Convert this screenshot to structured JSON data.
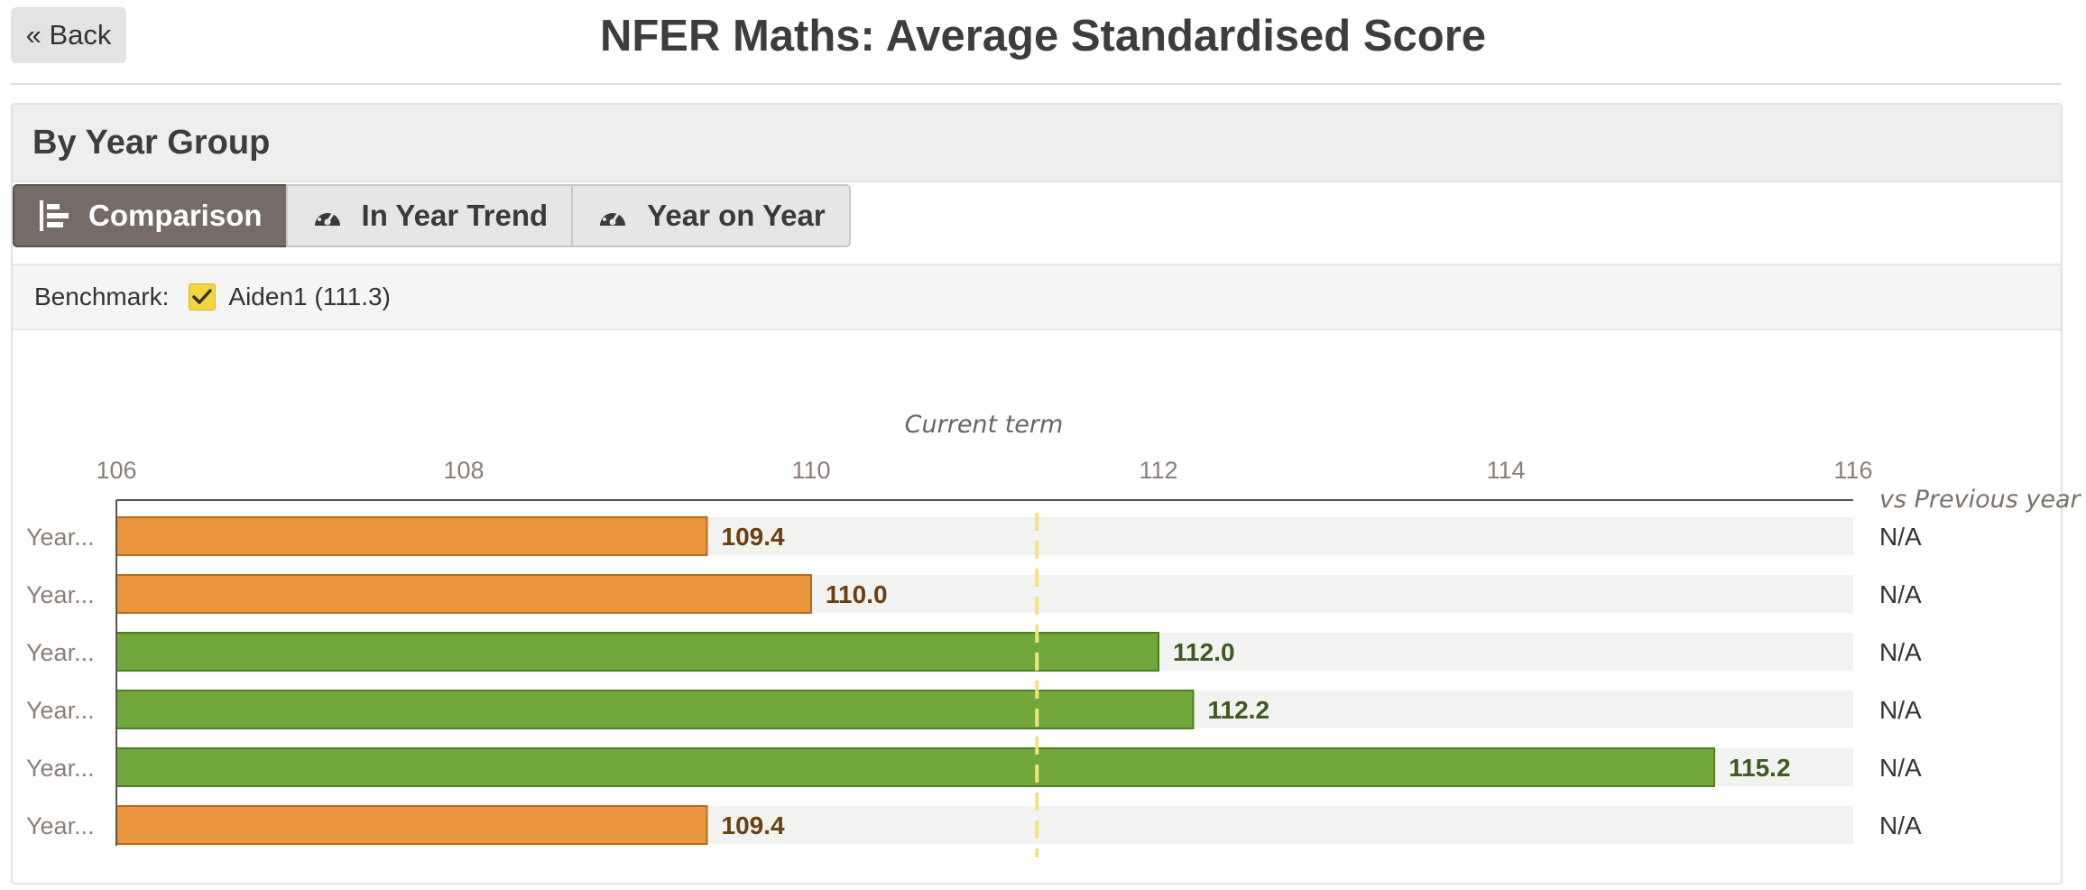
{
  "header": {
    "back_label": "« Back",
    "title": "NFER Maths: Average Standardised Score"
  },
  "panel": {
    "heading": "By Year Group",
    "tabs": [
      {
        "label": "Comparison",
        "icon": "bar-chart-icon",
        "active": true
      },
      {
        "label": "In Year Trend",
        "icon": "gauge-icon",
        "active": false
      },
      {
        "label": "Year on Year",
        "icon": "gauge-icon",
        "active": false
      }
    ],
    "benchmark": {
      "label": "Benchmark:",
      "checked": true,
      "item": "Aiden1 (111.3)"
    }
  },
  "colors": {
    "below_benchmark": "#e9963e",
    "above_benchmark": "#72a83b",
    "benchmark_line": "#f2e27a",
    "track": "#f2f2f0"
  },
  "chart_data": {
    "type": "bar",
    "orientation": "horizontal",
    "axis_title": "Current term",
    "xlim": [
      106,
      116
    ],
    "ticks": [
      106,
      108,
      110,
      112,
      114,
      116
    ],
    "benchmark": 111.3,
    "right_column_title": "vs Previous year",
    "categories": [
      "Year...",
      "Year...",
      "Year...",
      "Year...",
      "Year...",
      "Year..."
    ],
    "values": [
      109.4,
      110.0,
      112.0,
      112.2,
      115.2,
      109.4
    ],
    "value_labels": [
      "109.4",
      "110.0",
      "112.0",
      "112.2",
      "115.2",
      "109.4"
    ],
    "vs_previous_year": [
      "N/A",
      "N/A",
      "N/A",
      "N/A",
      "N/A",
      "N/A"
    ]
  }
}
